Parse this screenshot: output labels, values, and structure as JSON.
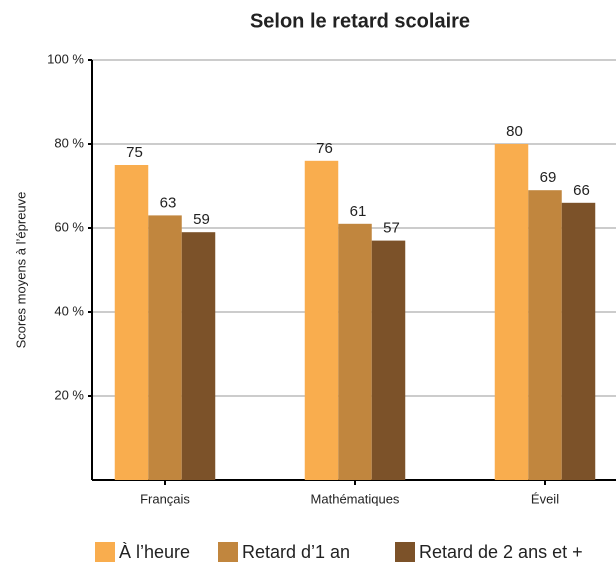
{
  "chart_data": {
    "type": "bar",
    "title": "Selon le retard scolaire",
    "y_label": "Scores moyens à l’épreuve",
    "categories": [
      "Français",
      "Mathématiques",
      "Éveil"
    ],
    "series": [
      {
        "name": "À l’heure",
        "color": "#f9ad4e",
        "values": [
          75,
          76,
          80
        ]
      },
      {
        "name": "Retard d’1 an",
        "color": "#c1863e",
        "values": [
          63,
          61,
          69
        ]
      },
      {
        "name": "Retard de 2 ans et +",
        "color": "#7c5229",
        "values": [
          59,
          57,
          66
        ]
      }
    ],
    "ylim": [
      0,
      100
    ],
    "yticks": [
      {
        "value": 20,
        "label": "20 %"
      },
      {
        "value": 40,
        "label": "40 %"
      },
      {
        "value": 60,
        "label": "60 %"
      },
      {
        "value": 80,
        "label": "80 %"
      },
      {
        "value": 100,
        "label": "100 %"
      }
    ],
    "grid": true,
    "legend": "bottom"
  }
}
